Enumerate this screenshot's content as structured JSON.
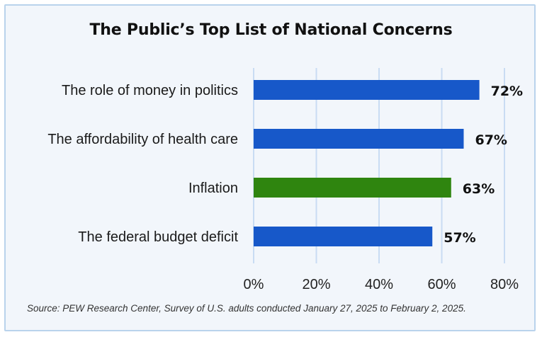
{
  "chart_data": {
    "type": "bar",
    "orientation": "horizontal",
    "title": "The Public’s Top List of National Concerns",
    "categories": [
      "The role of money in politics",
      "The affordability of health care",
      "Inflation",
      "The federal budget deficit"
    ],
    "values": [
      72,
      67,
      63,
      57
    ],
    "value_labels": [
      "72%",
      "67%",
      "63%",
      "57%"
    ],
    "bar_colors": [
      "#1758c9",
      "#1758c9",
      "#2f850f",
      "#1758c9"
    ],
    "xlim": [
      0,
      80
    ],
    "xticks": [
      0,
      20,
      40,
      60,
      80
    ],
    "xtick_labels": [
      "0%",
      "20%",
      "40%",
      "60%",
      "80%"
    ],
    "grid": "vertical",
    "xlabel": "",
    "ylabel": ""
  },
  "source": "Source: PEW Research Center, Survey of U.S. adults conducted January 27, 2025 to February 2, 2025.",
  "colors": {
    "background": "#f2f6fb",
    "border": "#b9d3ec",
    "grid": "#c9dcf3",
    "bar_default": "#1758c9",
    "bar_highlight": "#2f850f"
  }
}
